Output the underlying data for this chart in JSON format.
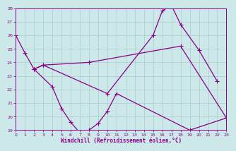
{
  "xlabel": "Windchill (Refroidissement éolien,°C)",
  "xlim": [
    0,
    23
  ],
  "ylim": [
    19,
    28
  ],
  "yticks": [
    19,
    20,
    21,
    22,
    23,
    24,
    25,
    26,
    27,
    28
  ],
  "xticks": [
    0,
    1,
    2,
    3,
    4,
    5,
    6,
    7,
    8,
    9,
    10,
    11,
    12,
    13,
    14,
    15,
    16,
    17,
    18,
    19,
    20,
    21,
    22,
    23
  ],
  "bg_color": "#cce8e8",
  "grid_color": "#aacece",
  "line_color": "#880088",
  "curve1_x": [
    0,
    1,
    2,
    3,
    10,
    15,
    16,
    17,
    18,
    20,
    22
  ],
  "curve1_y": [
    26.0,
    24.7,
    23.5,
    23.8,
    21.7,
    26.0,
    27.8,
    28.2,
    26.8,
    24.9,
    22.6
  ],
  "curve2_x": [
    2,
    3,
    8,
    18,
    23
  ],
  "curve2_y": [
    23.5,
    23.8,
    24.0,
    25.2,
    19.9
  ],
  "curve3_x": [
    2,
    4,
    5,
    6,
    7,
    8,
    9,
    10,
    11,
    19,
    23
  ],
  "curve3_y": [
    23.5,
    22.2,
    20.6,
    19.6,
    18.8,
    19.0,
    19.5,
    20.4,
    21.7,
    19.0,
    19.9
  ]
}
